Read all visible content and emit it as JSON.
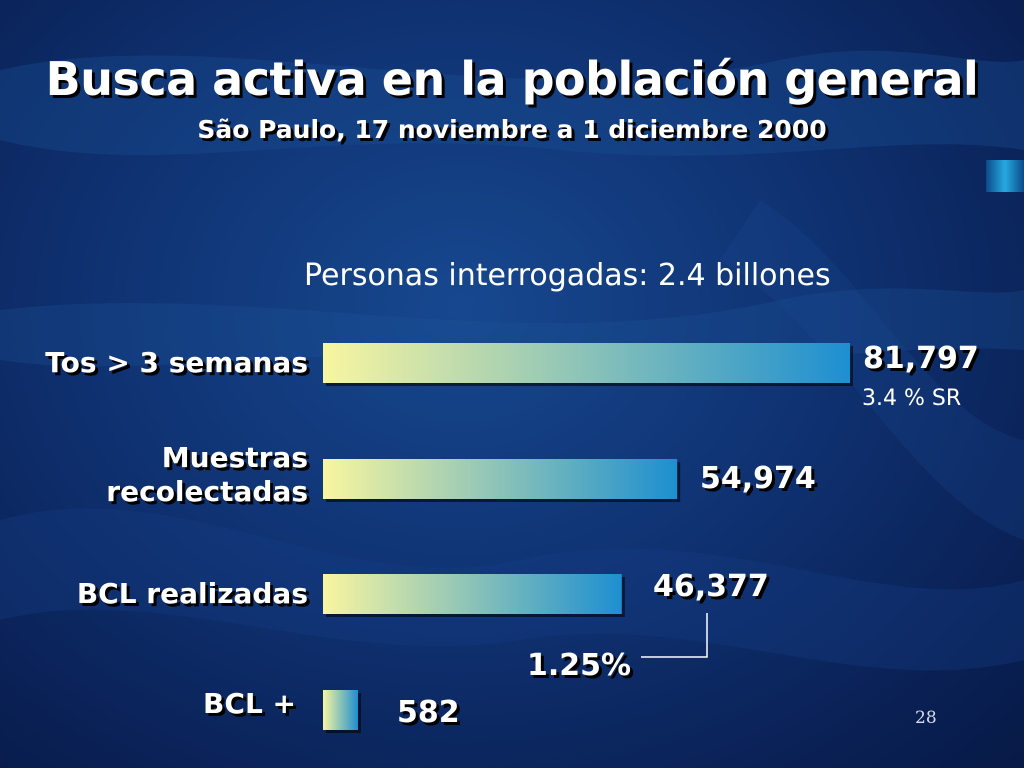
{
  "slide": {
    "title": "Busca activa en la población general",
    "subtitle": "São Paulo, 17 noviembre a 1 diciembre 2000",
    "headline": "Personas interrogadas:  2.4 billones",
    "slide_number": "28"
  },
  "chart_data": {
    "type": "bar",
    "orientation": "horizontal",
    "title": "",
    "xlabel": "",
    "ylabel": "",
    "categories": [
      "Tos > 3 semanas",
      "Muestras recolectadas",
      "BCL realizadas",
      "BCL +"
    ],
    "category_lines": [
      [
        "Tos > 3 semanas"
      ],
      [
        "Muestras",
        "recolectadas"
      ],
      [
        "BCL realizadas"
      ],
      [
        "BCL +"
      ]
    ],
    "values": [
      81797,
      54974,
      46377,
      582
    ],
    "value_labels": [
      "81,797",
      "54,974",
      "46,377",
      "582"
    ],
    "annotations": {
      "tos_share": "3.4 % SR",
      "bcl_positive_rate": "1.25%"
    },
    "xlim": [
      0,
      81797
    ],
    "grid": false,
    "legend": "none",
    "bar_gradient": [
      "#f8f6a0",
      "#1d8fd0"
    ],
    "colors": {
      "label": "#ffffff",
      "connector": "#ffffff"
    }
  }
}
